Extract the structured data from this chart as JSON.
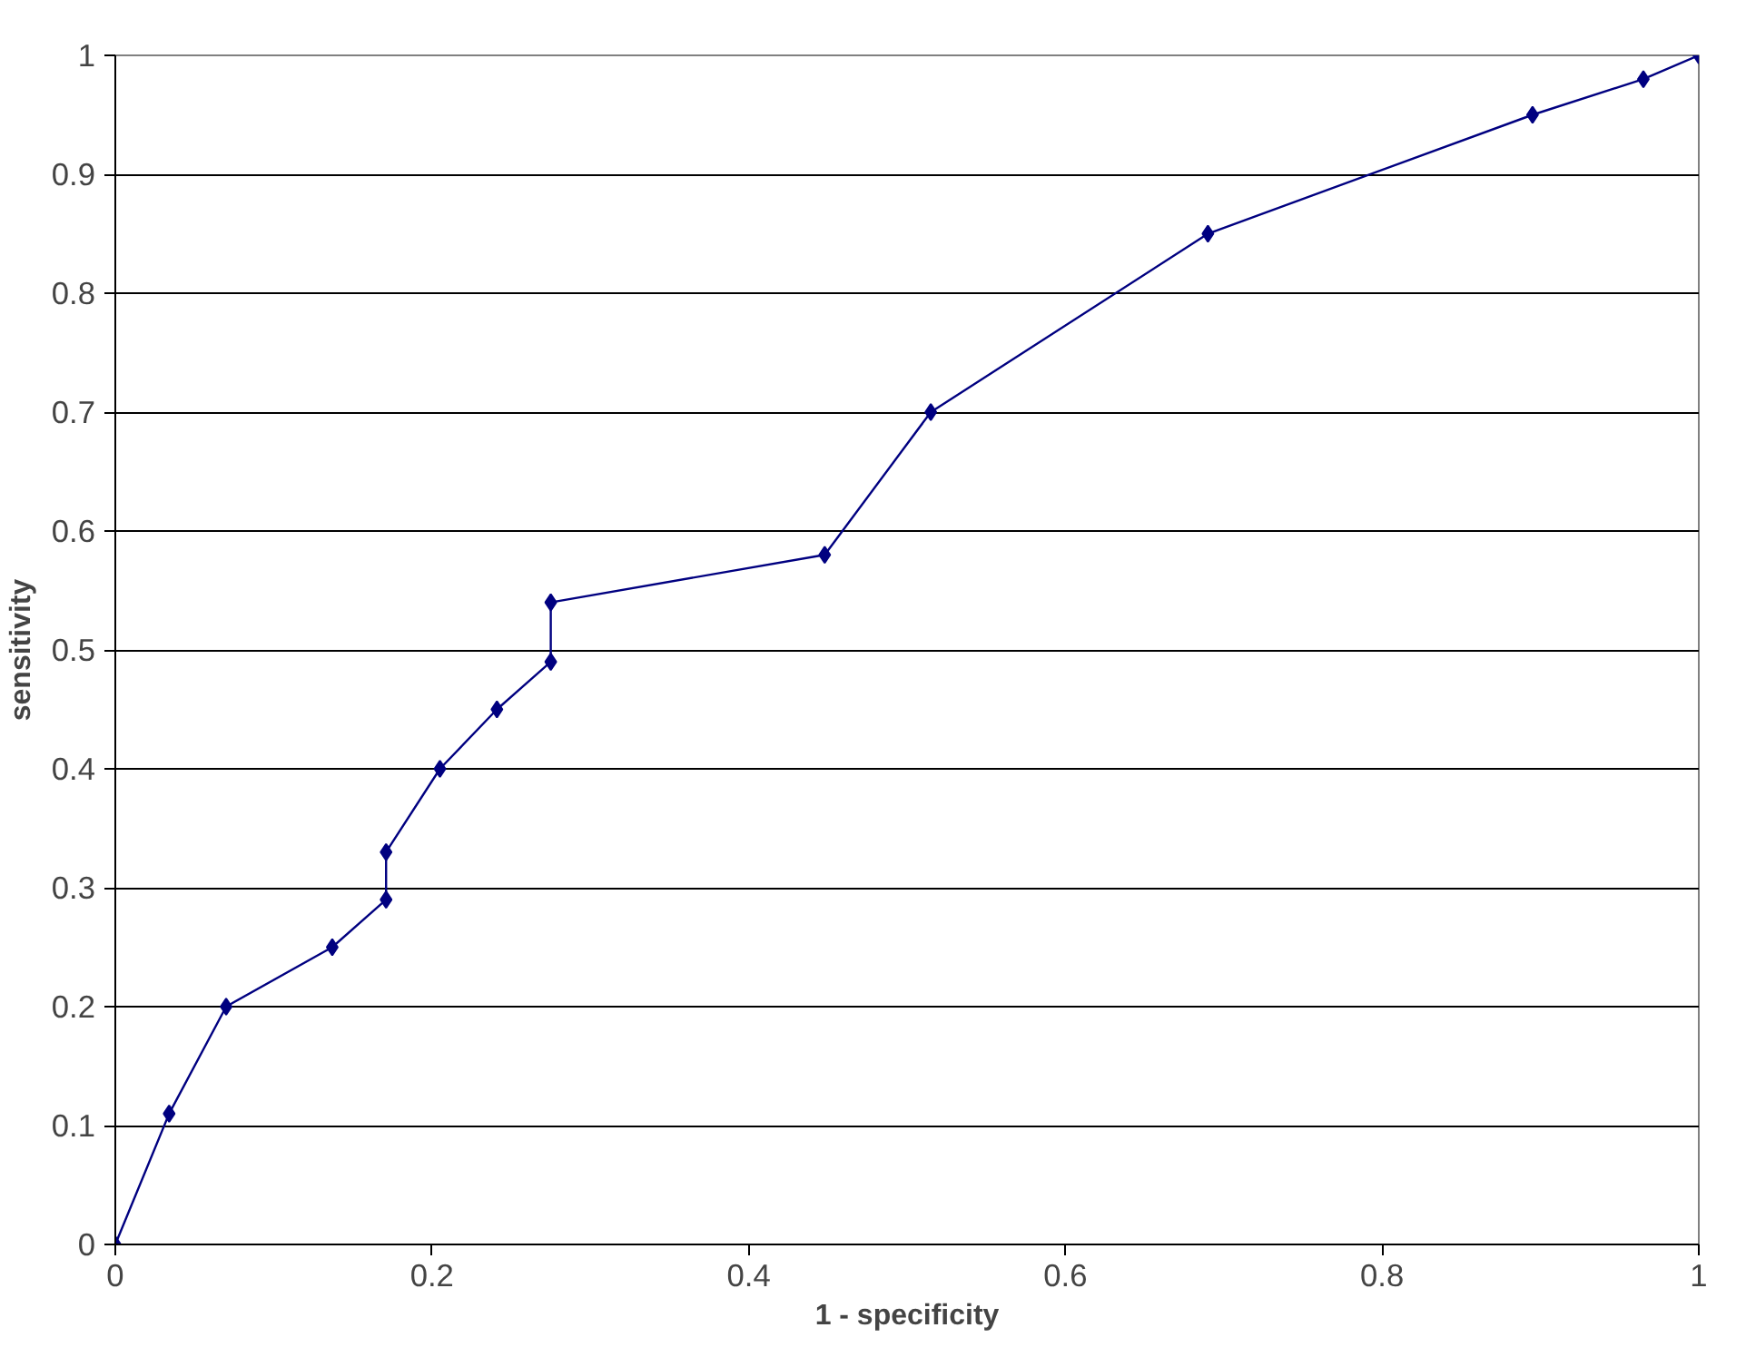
{
  "chart_data": {
    "type": "line",
    "xlabel": "1 - specificity",
    "ylabel": "sensitivity",
    "x": [
      0,
      0.034,
      0.07,
      0.137,
      0.171,
      0.171,
      0.205,
      0.241,
      0.275,
      0.275,
      0.448,
      0.515,
      0.69,
      0.895,
      0.965,
      1
    ],
    "series": [
      {
        "color": "#000080",
        "values": [
          0,
          0.11,
          0.2,
          0.25,
          0.29,
          0.33,
          0.4,
          0.45,
          0.49,
          0.54,
          0.58,
          0.7,
          0.85,
          0.95,
          0.98,
          1
        ]
      }
    ],
    "xlim": [
      0,
      1
    ],
    "ylim": [
      0,
      1
    ],
    "xticks": [
      0,
      0.2,
      0.4,
      0.6,
      0.8,
      1
    ],
    "yticks": [
      0,
      0.1,
      0.2,
      0.3,
      0.4,
      0.5,
      0.6,
      0.7,
      0.8,
      0.9,
      1
    ],
    "grid": "y",
    "marker": "diamond",
    "line_style": "solid"
  }
}
